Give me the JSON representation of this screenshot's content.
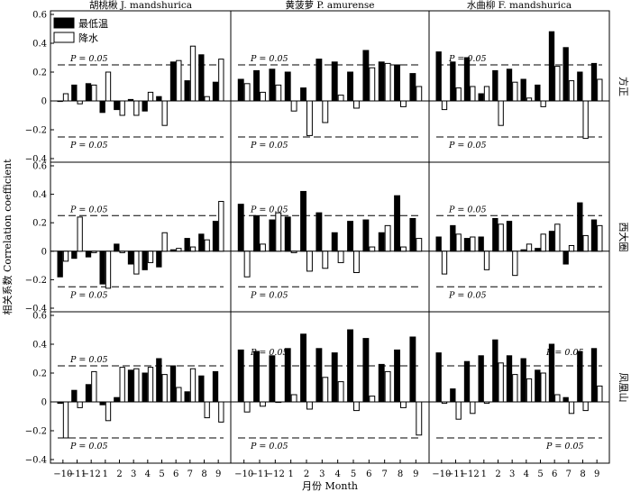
{
  "legend": {
    "items": [
      {
        "label": "最低温",
        "color": "#000000"
      },
      {
        "label": "降水",
        "color": "#ffffff"
      }
    ],
    "placement": "top-left"
  },
  "axis_titles": {
    "y": "相关系数 Correlation coefficient",
    "x": "月份 Month"
  },
  "significance_label": "P = 0.05",
  "chart_data": {
    "type": "bar",
    "categories": [
      "−10",
      "−11",
      "−12",
      "1",
      "2",
      "3",
      "4",
      "5",
      "6",
      "7",
      "8",
      "9"
    ],
    "ylim": [
      -0.4,
      0.6
    ],
    "yticks": [
      "0.6",
      "0.4",
      "0.2",
      "0",
      "−0.2",
      "−0.4"
    ],
    "significance": [
      0.25,
      -0.25
    ],
    "grid": false,
    "panels": [
      {
        "column": "胡桃楸 J. mandshurica",
        "row": "方正",
        "series": [
          {
            "name": "最低温",
            "values": [
              0.0,
              0.11,
              0.12,
              -0.08,
              -0.06,
              0.01,
              -0.07,
              0.03,
              0.27,
              0.14,
              0.32,
              0.13
            ]
          },
          {
            "name": "降水",
            "values": [
              0.05,
              -0.02,
              0.11,
              0.2,
              -0.1,
              -0.1,
              0.06,
              -0.17,
              0.28,
              0.38,
              0.03,
              0.29
            ]
          }
        ]
      },
      {
        "column": "黄菠萝 P. amurense",
        "row": "方正",
        "series": [
          {
            "name": "最低温",
            "values": [
              0.15,
              0.21,
              0.22,
              0.2,
              0.09,
              0.29,
              0.27,
              0.2,
              0.35,
              0.27,
              0.25,
              0.19
            ]
          },
          {
            "name": "降水",
            "values": [
              0.12,
              0.06,
              0.11,
              -0.07,
              -0.24,
              -0.15,
              0.04,
              -0.05,
              0.23,
              0.26,
              -0.04,
              0.1
            ]
          }
        ]
      },
      {
        "column": "水曲柳 F. mandshurica",
        "row": "方正",
        "series": [
          {
            "name": "最低温",
            "values": [
              0.34,
              0.27,
              0.3,
              0.05,
              0.21,
              0.22,
              0.15,
              0.11,
              0.48,
              0.37,
              0.2,
              0.26
            ]
          },
          {
            "name": "降水",
            "values": [
              -0.06,
              0.09,
              0.1,
              0.1,
              -0.17,
              0.13,
              0.02,
              -0.04,
              0.24,
              0.14,
              -0.26,
              0.15
            ]
          }
        ]
      },
      {
        "column": "胡桃楸 J. mandshurica",
        "row": "西大圈",
        "series": [
          {
            "name": "最低温",
            "values": [
              -0.18,
              -0.05,
              -0.04,
              -0.23,
              0.05,
              -0.09,
              -0.13,
              -0.11,
              0.01,
              0.09,
              0.12,
              0.21
            ]
          },
          {
            "name": "降水",
            "values": [
              -0.07,
              0.24,
              -0.01,
              -0.26,
              -0.01,
              -0.16,
              -0.08,
              0.13,
              0.02,
              0.03,
              0.08,
              0.35
            ]
          }
        ]
      },
      {
        "column": "黄菠萝 P. amurense",
        "row": "西大圈",
        "series": [
          {
            "name": "最低温",
            "values": [
              0.33,
              0.25,
              0.22,
              0.24,
              0.42,
              0.27,
              0.13,
              0.21,
              0.22,
              0.13,
              0.39,
              0.23
            ]
          },
          {
            "name": "降水",
            "values": [
              -0.18,
              0.05,
              0.27,
              -0.01,
              -0.14,
              -0.12,
              -0.08,
              -0.15,
              0.03,
              0.18,
              0.03,
              0.09
            ]
          }
        ]
      },
      {
        "column": "水曲柳 F. mandshurica",
        "row": "西大圈",
        "series": [
          {
            "name": "最低温",
            "values": [
              0.1,
              0.18,
              0.09,
              0.1,
              0.23,
              0.21,
              0.01,
              0.02,
              0.14,
              -0.09,
              0.34,
              0.22
            ]
          },
          {
            "name": "降水",
            "values": [
              -0.16,
              0.12,
              0.1,
              -0.13,
              0.19,
              -0.17,
              0.05,
              0.12,
              0.19,
              0.04,
              0.11,
              0.18
            ]
          }
        ]
      },
      {
        "column": "胡桃楸 J. mandshurica",
        "row": "凤凰山",
        "series": [
          {
            "name": "最低温",
            "values": [
              -0.01,
              0.08,
              0.12,
              -0.02,
              0.03,
              0.22,
              0.2,
              0.3,
              0.25,
              0.07,
              0.18,
              0.21
            ]
          },
          {
            "name": "降水",
            "values": [
              -0.25,
              -0.04,
              0.21,
              -0.13,
              0.24,
              0.23,
              0.24,
              0.19,
              0.1,
              0.23,
              -0.11,
              -0.14
            ]
          }
        ]
      },
      {
        "column": "黄菠萝 P. amurense",
        "row": "凤凰山",
        "series": [
          {
            "name": "最低温",
            "values": [
              0.36,
              0.35,
              0.32,
              0.37,
              0.47,
              0.37,
              0.34,
              0.5,
              0.44,
              0.26,
              0.36,
              0.45
            ]
          },
          {
            "name": "降水",
            "values": [
              -0.07,
              -0.03,
              0.0,
              0.05,
              -0.05,
              0.17,
              0.14,
              -0.06,
              0.04,
              0.21,
              -0.04,
              -0.23
            ]
          }
        ]
      },
      {
        "column": "水曲柳 F. mandshurica",
        "row": "凤凰山",
        "series": [
          {
            "name": "最低温",
            "values": [
              0.34,
              0.09,
              0.28,
              0.32,
              0.43,
              0.32,
              0.3,
              0.22,
              0.4,
              0.03,
              0.35,
              0.37
            ]
          },
          {
            "name": "降水",
            "values": [
              -0.01,
              -0.12,
              -0.08,
              -0.01,
              0.27,
              0.19,
              0.16,
              0.2,
              0.05,
              -0.08,
              -0.06,
              0.11
            ]
          }
        ]
      }
    ]
  }
}
